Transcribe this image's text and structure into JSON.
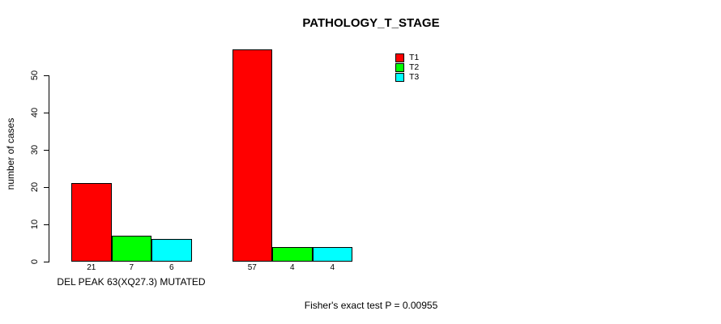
{
  "chart_data": {
    "type": "bar",
    "title": "PATHOLOGY_T_STAGE",
    "xlabel": "",
    "ylabel": "number of cases",
    "categories": [
      "DEL PEAK 63(XQ27.3) MUTATED",
      ""
    ],
    "series": [
      {
        "name": "T1",
        "color": "#FF0000",
        "values": [
          21,
          57
        ]
      },
      {
        "name": "T2",
        "color": "#00FF00",
        "values": [
          7,
          4
        ]
      },
      {
        "name": "T3",
        "color": "#00FFFF",
        "values": [
          6,
          4
        ]
      }
    ],
    "bar_value_labels": [
      [
        21,
        7,
        6
      ],
      [
        57,
        4,
        4
      ]
    ],
    "y_ticks": [
      0,
      10,
      20,
      30,
      40,
      50
    ],
    "ylim": [
      0,
      57
    ],
    "grid": false,
    "legend_position": "top-right",
    "annotation": "Fisher's exact test P = 0.00955"
  }
}
